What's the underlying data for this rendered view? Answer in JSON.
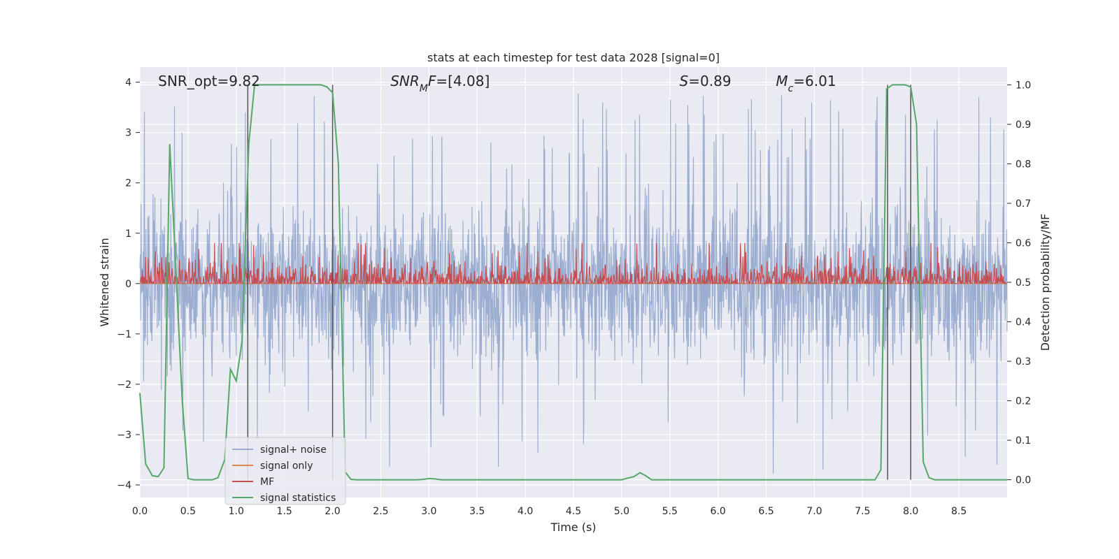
{
  "chart_data": {
    "type": "line",
    "title": "stats at each timestep for test data 2028 [signal=0]",
    "xlabel": "Time (s)",
    "ylabel": "Whitened strain",
    "y2label": "Detection probability/MF",
    "xlim": [
      0,
      9
    ],
    "ylim": [
      -4.25,
      4.3
    ],
    "y2lim": [
      -0.045,
      1.045
    ],
    "x_ticks": [
      "0.0",
      "0.5",
      "1.0",
      "1.5",
      "2.0",
      "2.5",
      "3.0",
      "3.5",
      "4.0",
      "4.5",
      "5.0",
      "5.5",
      "6.0",
      "6.5",
      "7.0",
      "7.5",
      "8.0",
      "8.5"
    ],
    "y_ticks": [
      "4",
      "3",
      "2",
      "1",
      "0",
      "−1",
      "−2",
      "−3",
      "−4"
    ],
    "y2_ticks": [
      "1.0",
      "0.9",
      "0.8",
      "0.7",
      "0.6",
      "0.5",
      "0.4",
      "0.3",
      "0.2",
      "0.1",
      "0.0"
    ],
    "grid": true,
    "legend_position": "lower-left",
    "annotations": [
      {
        "name": "snr-opt",
        "parts": [
          {
            "t": "SNR_opt=9.82",
            "i": false
          }
        ],
        "x": 0.19
      },
      {
        "name": "snr-mf",
        "parts": [
          {
            "t": "SNR",
            "i": true
          },
          {
            "t": "M",
            "i": true,
            "sub": true
          },
          {
            "t": "F",
            "i": true
          },
          {
            "t": "=[4.08]",
            "i": false
          }
        ],
        "x": 2.6
      },
      {
        "name": "s-value",
        "parts": [
          {
            "t": "S",
            "i": true
          },
          {
            "t": "=0.89",
            "i": false
          }
        ],
        "x": 5.6
      },
      {
        "name": "mc-value",
        "parts": [
          {
            "t": "M",
            "i": true
          },
          {
            "t": "c",
            "i": true,
            "sub": true
          },
          {
            "t": "=6.01",
            "i": false
          }
        ],
        "x": 6.6
      }
    ],
    "series": [
      {
        "name": "signal+ noise",
        "color": "#4c72b0",
        "opacity": 0.5,
        "style": "noise",
        "amplitude": 1.0,
        "samples": 2304
      },
      {
        "name": "signal only",
        "color": "#dd8452",
        "values": [
          0,
          0
        ],
        "x": [
          0,
          9
        ]
      },
      {
        "name": "MF",
        "color": "#c44e52",
        "axis": "right",
        "baseline": 0.5,
        "style": "noise",
        "samples": 1800
      },
      {
        "name": "signal statistics",
        "color": "#55a868",
        "axis": "right",
        "x": [
          0.0,
          0.06,
          0.13,
          0.19,
          0.25,
          0.31,
          0.38,
          0.44,
          0.5,
          0.56,
          0.63,
          0.69,
          0.75,
          0.81,
          0.88,
          0.94,
          1.0,
          1.06,
          1.13,
          1.19,
          1.25,
          1.31,
          1.38,
          1.44,
          1.5,
          1.56,
          1.63,
          1.69,
          1.75,
          1.81,
          1.88,
          1.94,
          2.0,
          2.06,
          2.13,
          2.19,
          2.25,
          2.31,
          2.38,
          2.44,
          2.5,
          2.56,
          2.63,
          2.69,
          2.75,
          2.81,
          2.88,
          2.94,
          3.0,
          3.06,
          3.13,
          3.19,
          3.25,
          4.5,
          5.0,
          5.06,
          5.13,
          5.19,
          5.25,
          5.31,
          5.38,
          5.44,
          5.5,
          7.56,
          7.63,
          7.69,
          7.75,
          7.81,
          7.88,
          7.94,
          8.0,
          8.06,
          8.13,
          8.19,
          8.25,
          8.31,
          9.0
        ],
        "values": [
          0.22,
          0.04,
          0.01,
          0.008,
          0.03,
          0.85,
          0.5,
          0.2,
          0.003,
          0.0,
          0.0,
          0.0,
          0.0,
          0.005,
          0.05,
          0.28,
          0.25,
          0.35,
          0.85,
          1.0,
          1.0,
          1.0,
          1.0,
          1.0,
          1.0,
          1.0,
          1.0,
          1.0,
          1.0,
          1.0,
          1.0,
          0.995,
          0.98,
          0.8,
          0.02,
          0.001,
          0.0,
          0.0,
          0.0,
          0.0,
          0.0,
          0.0,
          0.0,
          0.0,
          0.0,
          0.0,
          0.0,
          0.001,
          0.003,
          0.002,
          0.0,
          0.0,
          0.0,
          0.0,
          0.0,
          0.004,
          0.008,
          0.018,
          0.01,
          0.0,
          0.0,
          0.0,
          0.0,
          0.0,
          0.0,
          0.025,
          0.99,
          1.0,
          1.0,
          1.0,
          0.995,
          0.9,
          0.045,
          0.005,
          0.0,
          0.0,
          0.0
        ]
      }
    ],
    "vertical_lines": [
      1.12,
      2.0,
      7.76,
      8.0
    ]
  }
}
